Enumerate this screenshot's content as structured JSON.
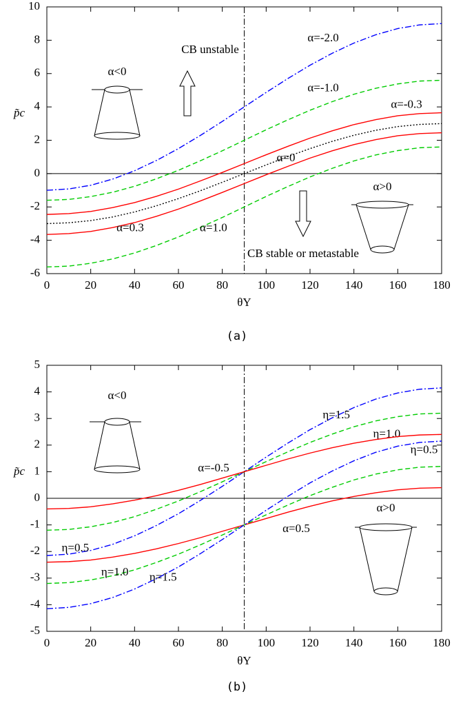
{
  "chart_data": [
    {
      "type": "line",
      "xlabel": "θY",
      "ylabel": "p̃c",
      "caption": "(a)",
      "x": [
        0,
        10,
        20,
        30,
        40,
        50,
        60,
        70,
        80,
        90,
        100,
        110,
        120,
        130,
        140,
        150,
        160,
        170,
        180
      ],
      "xlim": [
        0,
        180
      ],
      "ylim": [
        -6,
        10
      ],
      "xticks": [
        0,
        20,
        40,
        60,
        80,
        100,
        120,
        140,
        160,
        180
      ],
      "yticks": [
        -6,
        -4,
        -2,
        0,
        2,
        4,
        6,
        8,
        10
      ],
      "vline": 90,
      "hline": 0,
      "series": [
        {
          "name": "α=-2.0",
          "color": "#0000ff",
          "style": "dashdot",
          "values": [
            -1,
            -0.92,
            -0.7,
            -0.33,
            0.17,
            0.79,
            1.5,
            2.29,
            3.13,
            4,
            4.87,
            5.71,
            6.5,
            7.21,
            7.83,
            8.33,
            8.7,
            8.92,
            9
          ]
        },
        {
          "name": "α=-1.0",
          "color": "#00cc00",
          "style": "dashed",
          "values": [
            -1.6,
            -1.55,
            -1.38,
            -1.12,
            -0.76,
            -0.31,
            0.2,
            0.77,
            1.37,
            2,
            2.63,
            3.23,
            3.8,
            4.31,
            4.76,
            5.12,
            5.38,
            5.55,
            5.6
          ]
        },
        {
          "name": "α=-0.3",
          "color": "#ff0000",
          "style": "solid",
          "values": [
            -2.45,
            -2.4,
            -2.27,
            -2.04,
            -1.74,
            -1.36,
            -0.93,
            -0.44,
            0.07,
            0.6,
            1.13,
            1.64,
            2.13,
            2.56,
            2.94,
            3.24,
            3.47,
            3.6,
            3.65
          ]
        },
        {
          "name": "α=0",
          "color": "#000000",
          "style": "dotted",
          "values": [
            -3,
            -2.95,
            -2.82,
            -2.6,
            -2.3,
            -1.93,
            -1.5,
            -1.03,
            -0.52,
            0,
            0.52,
            1.03,
            1.5,
            1.93,
            2.3,
            2.6,
            2.82,
            2.95,
            3
          ]
        },
        {
          "name": "α=0.3",
          "color": "#ff0000",
          "style": "solid",
          "values": [
            -3.65,
            -3.6,
            -3.47,
            -3.24,
            -2.94,
            -2.56,
            -2.13,
            -1.64,
            -1.13,
            -0.6,
            -0.07,
            0.44,
            0.93,
            1.36,
            1.74,
            2.04,
            2.27,
            2.4,
            2.45
          ]
        },
        {
          "name": "α=1.0",
          "color": "#00cc00",
          "style": "dashed",
          "values": [
            -5.6,
            -5.55,
            -5.38,
            -5.12,
            -4.76,
            -4.31,
            -3.8,
            -3.23,
            -2.63,
            -2,
            -1.37,
            -0.77,
            -0.2,
            0.31,
            0.76,
            1.12,
            1.38,
            1.55,
            1.6
          ]
        }
      ],
      "annotations": [
        "α<0",
        "CB unstable",
        "α>0",
        "CB stable or metastable"
      ]
    },
    {
      "type": "line",
      "xlabel": "θY",
      "ylabel": "p̃c",
      "caption": "(b)",
      "x": [
        0,
        10,
        20,
        30,
        40,
        50,
        60,
        70,
        80,
        90,
        100,
        110,
        120,
        130,
        140,
        150,
        160,
        170,
        180
      ],
      "xlim": [
        0,
        180
      ],
      "ylim": [
        -5,
        5
      ],
      "xticks": [
        0,
        20,
        40,
        60,
        80,
        100,
        120,
        140,
        160,
        180
      ],
      "yticks": [
        -5,
        -4,
        -3,
        -2,
        -1,
        0,
        1,
        2,
        3,
        4,
        5
      ],
      "vline": 90,
      "hline": 0,
      "series": [
        {
          "name": "η=1.5",
          "color": "#0000ff",
          "style": "dashdot",
          "values": [
            -2.15,
            -2.1,
            -1.96,
            -1.73,
            -1.41,
            -1.02,
            -0.58,
            -0.08,
            0.45,
            1,
            1.55,
            2.08,
            2.58,
            3.02,
            3.41,
            3.73,
            3.96,
            4.1,
            4.15
          ]
        },
        {
          "name": "η=1.0",
          "color": "#00cc00",
          "style": "dashed",
          "values": [
            -1.2,
            -1.17,
            -1.07,
            -0.91,
            -0.69,
            -0.41,
            -0.1,
            0.25,
            0.62,
            1,
            1.38,
            1.75,
            2.1,
            2.41,
            2.69,
            2.91,
            3.07,
            3.17,
            3.2
          ]
        },
        {
          "name": "η=0.5",
          "color": "#ff0000",
          "style": "solid",
          "values": [
            -0.4,
            -0.38,
            -0.32,
            -0.21,
            -0.07,
            0.1,
            0.3,
            0.52,
            0.76,
            1,
            1.24,
            1.48,
            1.7,
            1.9,
            2.07,
            2.21,
            2.32,
            2.38,
            2.4
          ]
        },
        {
          "name": "η=0.5",
          "color": "#ff0000",
          "style": "solid",
          "values": [
            -2.4,
            -2.38,
            -2.32,
            -2.21,
            -2.07,
            -1.9,
            -1.7,
            -1.48,
            -1.24,
            -1,
            -0.76,
            -0.52,
            -0.3,
            -0.1,
            0.07,
            0.21,
            0.32,
            0.38,
            0.4
          ]
        },
        {
          "name": "η=1.0",
          "color": "#00cc00",
          "style": "dashed",
          "values": [
            -3.2,
            -3.17,
            -3.07,
            -2.91,
            -2.69,
            -2.41,
            -2.1,
            -1.75,
            -1.38,
            -1,
            -0.62,
            -0.25,
            0.1,
            0.41,
            0.69,
            0.91,
            1.07,
            1.17,
            1.2
          ]
        },
        {
          "name": "η=1.5",
          "color": "#0000ff",
          "style": "dashdot",
          "values": [
            -4.15,
            -4.1,
            -3.96,
            -3.73,
            -3.41,
            -3.02,
            -2.58,
            -2.08,
            -1.55,
            -1,
            -0.45,
            0.08,
            0.58,
            1.02,
            1.41,
            1.73,
            1.96,
            2.1,
            2.15
          ]
        }
      ],
      "annotations": [
        "α=-0.5",
        "α=0.5",
        "α<0",
        "α>0"
      ]
    }
  ]
}
